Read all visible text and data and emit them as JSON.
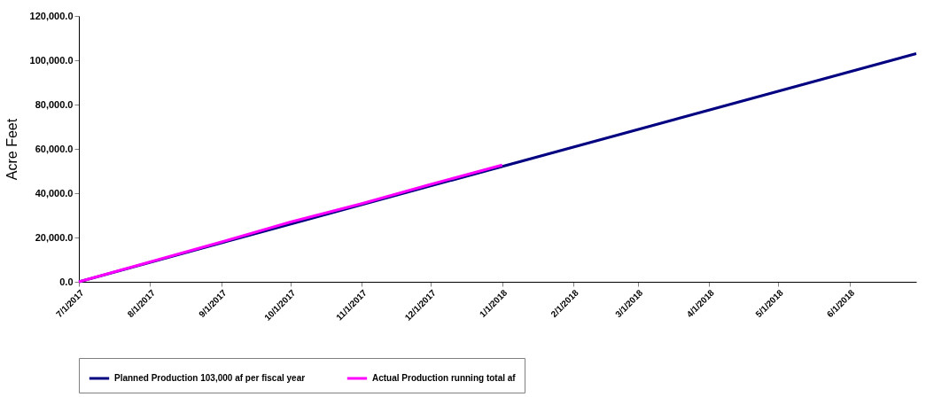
{
  "chart_data": {
    "type": "line",
    "ylabel": "Acre Feet",
    "xlim": [
      "2017-07-01",
      "2018-06-30"
    ],
    "xticks": [
      {
        "value": "2017-07-01",
        "label": "7/1/2017"
      },
      {
        "value": "2017-08-01",
        "label": "8/1/2017"
      },
      {
        "value": "2017-09-01",
        "label": "9/1/2017"
      },
      {
        "value": "2017-10-01",
        "label": "10/1/2017"
      },
      {
        "value": "2017-11-01",
        "label": "11/1/2017"
      },
      {
        "value": "2017-12-01",
        "label": "12/1/2017"
      },
      {
        "value": "2018-01-01",
        "label": "1/1/2018"
      },
      {
        "value": "2018-02-01",
        "label": "2/1/2018"
      },
      {
        "value": "2018-03-01",
        "label": "3/1/2018"
      },
      {
        "value": "2018-04-01",
        "label": "4/1/2018"
      },
      {
        "value": "2018-05-01",
        "label": "5/1/2018"
      },
      {
        "value": "2018-06-01",
        "label": "6/1/2018"
      }
    ],
    "ylim": [
      0,
      120000
    ],
    "yticks": [
      {
        "value": 0,
        "label": "0.0"
      },
      {
        "value": 20000,
        "label": "20,000.0"
      },
      {
        "value": 40000,
        "label": "40,000.0"
      },
      {
        "value": 60000,
        "label": "60,000.0"
      },
      {
        "value": 80000,
        "label": "80,000.0"
      },
      {
        "value": 100000,
        "label": "100,000.0"
      },
      {
        "value": 120000,
        "label": "120,000.0"
      }
    ],
    "grid": false,
    "legend": "bottom",
    "marker": "none",
    "line_style": "solid",
    "series": [
      {
        "name": "Planned Production 103,000 af per fiscal year",
        "color": "#000080",
        "x": [
          "2017-07-01",
          "2018-06-30"
        ],
        "values": [
          0,
          103000
        ]
      },
      {
        "name": "Actual Production running total af",
        "color": "#ff00ff",
        "x": [
          "2017-07-01",
          "2017-08-01",
          "2017-09-01",
          "2017-10-01",
          "2017-11-01",
          "2017-12-01",
          "2018-01-01"
        ],
        "values": [
          0,
          9000,
          18000,
          27000,
          35300,
          44000,
          52700
        ]
      }
    ]
  }
}
